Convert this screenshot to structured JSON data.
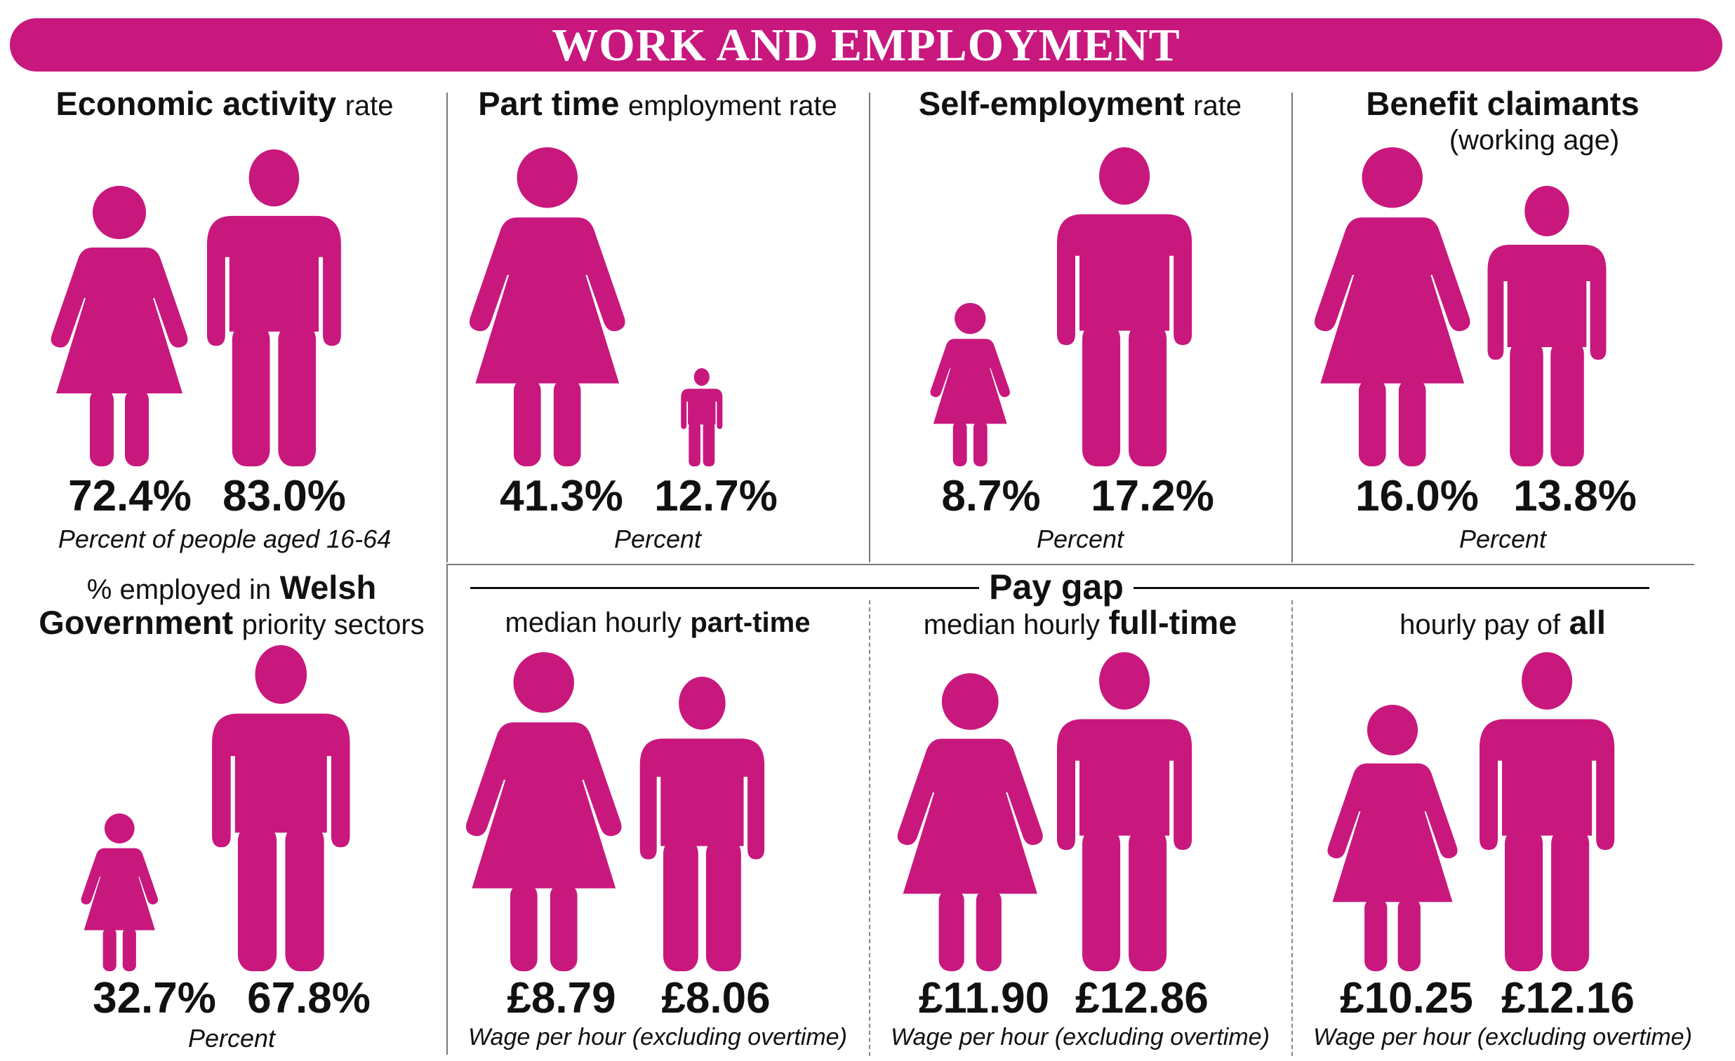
{
  "title": "WORK AND EMPLOYMENT",
  "colors": {
    "accent": "#c8187e"
  },
  "pay_gap_label": "Pay gap",
  "panels": [
    {
      "title_bold": "Economic activity",
      "title_rest": "rate",
      "note": "Percent of people aged 16-64",
      "women": "72.4%",
      "men": "83.0%"
    },
    {
      "title_bold": "Part time",
      "title_rest": "employment rate",
      "note": "Percent",
      "women": "41.3%",
      "men": "12.7%"
    },
    {
      "title_bold": "Self-employment",
      "title_rest": "rate",
      "note": "Percent",
      "women": "8.7%",
      "men": "17.2%"
    },
    {
      "title_bold": "Benefit claimants",
      "title_line2": "(working age)",
      "note": "Percent",
      "women": "16.0%",
      "men": "13.8%"
    },
    {
      "title_pre": "% employed in",
      "title_bold": "Welsh",
      "title_bold2": "Government",
      "title_rest": "priority sectors",
      "note": "Percent",
      "women": "32.7%",
      "men": "67.8%"
    },
    {
      "title_pre": "median hourly",
      "title_bold": "part-time",
      "note": "Wage per hour (excluding overtime)",
      "women": "£8.79",
      "men": "£8.06"
    },
    {
      "title_pre": "median hourly",
      "title_bold": "full-time",
      "note": "Wage per hour (excluding overtime)",
      "women": "£11.90",
      "men": "£12.86"
    },
    {
      "title_pre": "hourly pay of",
      "title_bold": "all",
      "note": "Wage per hour (excluding overtime)",
      "women": "£10.25",
      "men": "£12.16"
    }
  ],
  "chart_data": [
    {
      "type": "pictogram",
      "title": "Economic activity rate",
      "note": "Percent of people aged 16-64",
      "series": [
        {
          "values": [
            72.4,
            83.0
          ]
        }
      ],
      "unit": "%"
    },
    {
      "type": "pictogram",
      "title": "Part time employment rate",
      "note": "Percent",
      "series": [
        {
          "values": [
            41.3,
            12.7
          ]
        }
      ],
      "unit": "%"
    },
    {
      "type": "pictogram",
      "title": "Self-employment rate",
      "note": "Percent",
      "series": [
        {
          "values": [
            8.7,
            17.2
          ]
        }
      ],
      "unit": "%"
    },
    {
      "type": "pictogram",
      "title": "Benefit claimants (working age)",
      "note": "Percent",
      "series": [
        {
          "values": [
            16.0,
            13.8
          ]
        }
      ],
      "unit": "%"
    },
    {
      "type": "pictogram",
      "title": "% employed in Welsh Government priority sectors",
      "note": "Percent",
      "series": [
        {
          "values": [
            32.7,
            67.8
          ]
        }
      ],
      "unit": "%"
    },
    {
      "type": "pictogram",
      "title": "median hourly part-time",
      "note": "Wage per hour (excluding overtime)",
      "series": [
        {
          "values": [
            8.79,
            8.06
          ]
        }
      ],
      "unit": "£"
    },
    {
      "type": "pictogram",
      "title": "median hourly full-time",
      "note": "Wage per hour (excluding overtime)",
      "series": [
        {
          "values": [
            11.9,
            12.86
          ]
        }
      ],
      "unit": "£"
    },
    {
      "type": "pictogram",
      "title": "hourly pay of all",
      "note": "Wage per hour (excluding overtime)",
      "series": [
        {
          "values": [
            10.25,
            12.16
          ]
        }
      ],
      "unit": "£"
    }
  ]
}
